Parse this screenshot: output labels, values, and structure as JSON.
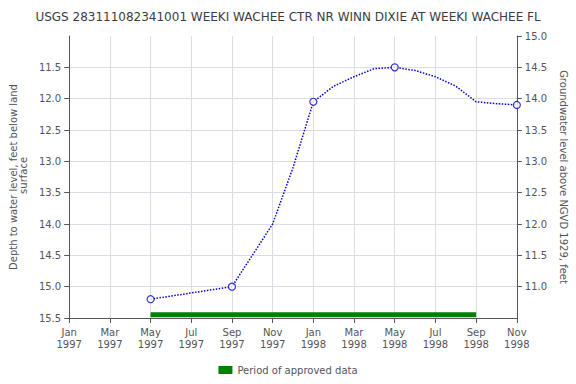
{
  "chart_data": {
    "type": "line",
    "title": "USGS 283111082341001 WEEKI WACHEE CTR NR WINN DIXIE AT WEEKI WACHEE FL",
    "ylabel": "Depth to water level, feet below land\n surface",
    "y2label": "Groundwater level above NGVD 1929, feet",
    "categories": [
      "Jan\n1997",
      null,
      "Mar\n1997",
      null,
      "May\n1997",
      null,
      "Jul\n1997",
      null,
      "Sep\n1997",
      null,
      "Nov\n1997",
      null,
      "Jan\n1998",
      null,
      "Mar\n1998",
      null,
      "May\n1998",
      null,
      "Jul\n1998",
      null,
      "Sep\n1998",
      null,
      "Nov\n1998"
    ],
    "ylim": [
      15.5,
      11.0
    ],
    "yticks": [
      11.5,
      {
        "value": 12,
        "label": "12.0"
      },
      12.5,
      {
        "value": 13,
        "label": "13.0"
      },
      13.5,
      {
        "value": 14,
        "label": "14.0"
      },
      14.5,
      {
        "value": 15,
        "label": "15.0"
      },
      15.5
    ],
    "y2lim": [
      10.5,
      15.0
    ],
    "y2ticks": [
      {
        "value": 11,
        "label": "11.0"
      },
      11.5,
      {
        "value": 12,
        "label": "12.0"
      },
      12.5,
      {
        "value": 13,
        "label": "13.0"
      },
      13.5,
      {
        "value": 14,
        "label": "14.0"
      },
      14.5,
      {
        "value": 15,
        "label": "15.0"
      }
    ],
    "grid": true,
    "legend": "bottom",
    "series": [
      {
        "values": [
          null,
          null,
          null,
          null,
          15.2,
          15.15,
          15.1,
          15.05,
          15.0,
          14.5,
          14.0,
          13.1,
          12.05,
          11.8,
          11.65,
          11.52,
          11.5,
          11.55,
          11.65,
          11.8,
          12.05,
          12.08,
          12.1
        ],
        "color": "#0000CC",
        "line_style": "dotted",
        "marker": "none"
      },
      {
        "type": "scatter",
        "values": [
          null,
          null,
          null,
          null,
          15.2,
          null,
          null,
          null,
          15.0,
          null,
          null,
          null,
          12.05,
          null,
          null,
          null,
          11.5,
          null,
          null,
          null,
          null,
          null,
          12.1
        ],
        "color": "#0000CC",
        "marker": "circle"
      },
      {
        "name": "Period of approved data",
        "values": [
          null,
          null,
          null,
          null,
          15.45,
          15.45,
          15.45,
          15.45,
          15.45,
          15.45,
          15.45,
          15.45,
          15.45,
          15.45,
          15.45,
          15.45,
          15.45,
          15.45,
          15.45,
          15.45,
          15.45,
          null,
          null
        ],
        "color": "#008000",
        "line_style": "solid",
        "marker": "none"
      }
    ]
  }
}
